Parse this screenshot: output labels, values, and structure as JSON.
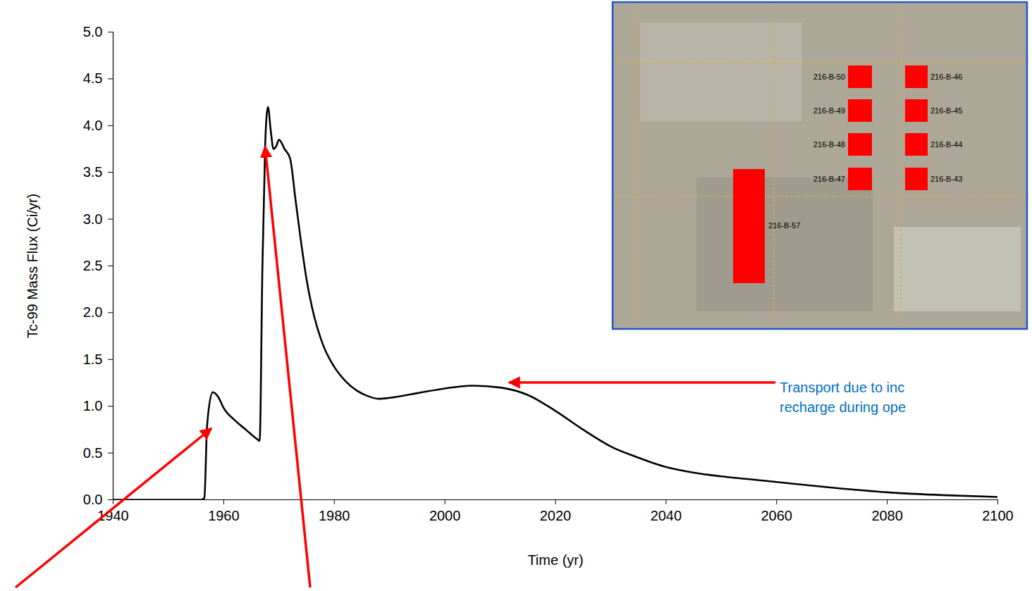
{
  "chart_data": {
    "type": "line",
    "x_label": "Time (yr)",
    "y_label": "Tc-99 Mass Flux (Ci/yr)",
    "x": [
      1940,
      1950,
      1956,
      1956.5,
      1957,
      1958,
      1959,
      1960,
      1962,
      1964,
      1966,
      1966.5,
      1967,
      1967.5,
      1968,
      1968.5,
      1969,
      1969.5,
      1970,
      1971,
      1972,
      1973,
      1974,
      1975,
      1976,
      1978,
      1980,
      1982,
      1984,
      1986,
      1988,
      1990,
      1995,
      2000,
      2005,
      2010,
      2015,
      2020,
      2025,
      2030,
      2035,
      2040,
      2045,
      2050,
      2055,
      2060,
      2070,
      2080,
      2090,
      2100
    ],
    "series": [
      {
        "name": "Tc-99",
        "color": "#000000",
        "values": [
          0,
          0,
          0,
          0.02,
          0.8,
          1.15,
          1.1,
          0.98,
          0.85,
          0.75,
          0.65,
          0.63,
          2.5,
          3.8,
          4.2,
          3.95,
          3.75,
          3.78,
          3.85,
          3.75,
          3.65,
          3.2,
          2.75,
          2.35,
          2.05,
          1.65,
          1.42,
          1.27,
          1.17,
          1.11,
          1.08,
          1.09,
          1.14,
          1.19,
          1.22,
          1.2,
          1.12,
          0.95,
          0.75,
          0.57,
          0.45,
          0.35,
          0.29,
          0.25,
          0.22,
          0.19,
          0.13,
          0.08,
          0.05,
          0.03
        ]
      }
    ],
    "xlim": [
      1940,
      2100
    ],
    "xticks": [
      1940,
      1960,
      1980,
      2000,
      2020,
      2040,
      2060,
      2080,
      2100
    ],
    "ylim": [
      0,
      5
    ],
    "yticks": [
      {
        "value": 0,
        "label": "0.0"
      },
      0.5,
      {
        "value": 1,
        "label": "1.0"
      },
      1.5,
      {
        "value": 2,
        "label": "2.0"
      },
      2.5,
      {
        "value": 3,
        "label": "3.0"
      },
      3.5,
      {
        "value": 4,
        "label": "4.0"
      },
      4.5,
      {
        "value": 5,
        "label": "5.0"
      }
    ],
    "grid": false,
    "annotations": [
      "Transport due to inc",
      "recharge during ope"
    ],
    "inset_labels": [
      "216-B-50",
      "216-B-49",
      "216-B-48",
      "216-B-47",
      "216-B-46",
      "216-B-45",
      "216-B-44",
      "216-B-43",
      "216-B-57"
    ]
  }
}
